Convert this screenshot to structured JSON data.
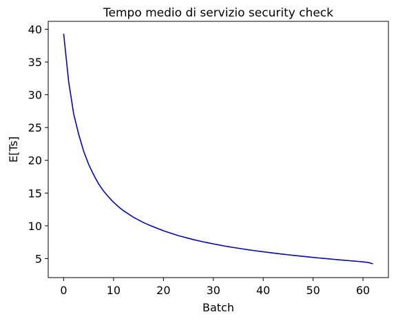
{
  "chart_data": {
    "type": "line",
    "title": "Tempo medio di servizio security check",
    "xlabel": "Batch",
    "ylabel": "E[Ts]",
    "xlim": [
      -3.1,
      65.1
    ],
    "ylim": [
      2.1,
      41.2
    ],
    "xticks": [
      0,
      10,
      20,
      30,
      40,
      50,
      60
    ],
    "yticks": [
      5,
      10,
      15,
      20,
      25,
      30,
      35,
      40
    ],
    "grid": false,
    "series": [
      {
        "color": "#0000cc",
        "x": [
          0,
          1,
          2,
          3,
          4,
          5,
          6,
          7,
          8,
          9,
          10,
          11,
          12,
          13,
          14,
          15,
          16,
          17,
          18,
          19,
          20,
          21,
          22,
          23,
          24,
          25,
          26,
          27,
          28,
          29,
          30,
          31,
          32,
          33,
          34,
          35,
          36,
          37,
          38,
          39,
          40,
          41,
          42,
          43,
          44,
          45,
          46,
          47,
          48,
          49,
          50,
          51,
          52,
          53,
          54,
          55,
          56,
          57,
          58,
          59,
          60,
          61,
          62
        ],
        "y": [
          39.3,
          32.0,
          27.1,
          24.0,
          21.4,
          19.4,
          17.8,
          16.4,
          15.3,
          14.4,
          13.6,
          12.9,
          12.3,
          11.8,
          11.3,
          10.9,
          10.5,
          10.15,
          9.85,
          9.55,
          9.25,
          9.0,
          8.75,
          8.5,
          8.3,
          8.1,
          7.9,
          7.72,
          7.55,
          7.4,
          7.25,
          7.1,
          6.95,
          6.82,
          6.7,
          6.58,
          6.46,
          6.35,
          6.24,
          6.14,
          6.04,
          5.94,
          5.85,
          5.76,
          5.67,
          5.58,
          5.5,
          5.42,
          5.34,
          5.26,
          5.18,
          5.11,
          5.04,
          4.97,
          4.9,
          4.83,
          4.76,
          4.7,
          4.63,
          4.57,
          4.5,
          4.42,
          4.2
        ]
      }
    ]
  }
}
